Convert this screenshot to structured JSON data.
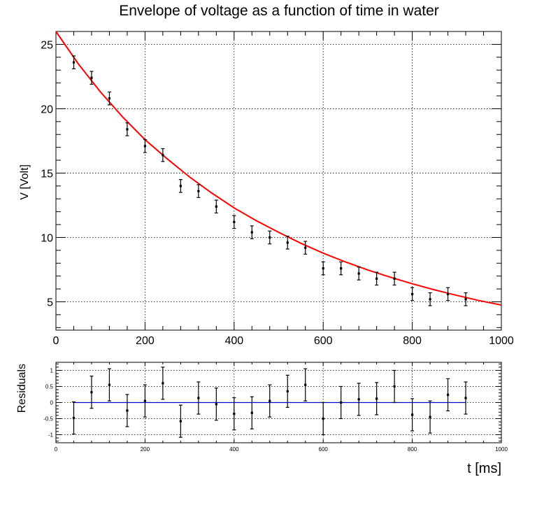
{
  "chart_data": [
    {
      "type": "scatter",
      "title": "Envelope of voltage as a function of time in water",
      "xlabel": "",
      "ylabel": "V [Volt]",
      "xlim": [
        0,
        1000
      ],
      "ylim": [
        2.8,
        26
      ],
      "x_ticks": [
        0,
        200,
        400,
        600,
        800,
        1000
      ],
      "y_ticks": [
        5,
        10,
        15,
        20,
        25
      ],
      "grid": true,
      "x": [
        40,
        80,
        120,
        160,
        200,
        240,
        280,
        320,
        360,
        400,
        440,
        480,
        520,
        560,
        600,
        640,
        680,
        720,
        760,
        800,
        840,
        880,
        920
      ],
      "y": [
        23.6,
        22.4,
        20.8,
        18.4,
        17.1,
        16.4,
        14.0,
        13.6,
        12.4,
        11.2,
        10.4,
        10.0,
        9.6,
        9.2,
        7.6,
        7.6,
        7.2,
        6.8,
        6.8,
        5.6,
        5.2,
        5.6,
        5.2
      ],
      "y_err": [
        0.5,
        0.5,
        0.5,
        0.5,
        0.5,
        0.5,
        0.5,
        0.5,
        0.5,
        0.5,
        0.5,
        0.5,
        0.5,
        0.5,
        0.5,
        0.5,
        0.5,
        0.5,
        0.5,
        0.5,
        0.5,
        0.5,
        0.5
      ],
      "fit_curve": {
        "color": "#ff0000",
        "x": [
          0,
          50,
          100,
          150,
          200,
          250,
          300,
          350,
          400,
          450,
          500,
          550,
          600,
          650,
          700,
          750,
          800,
          850,
          900,
          950,
          1000
        ],
        "y": [
          26.0,
          23.5,
          21.3,
          19.35,
          17.6,
          16.1,
          14.7,
          13.45,
          12.3,
          11.3,
          10.4,
          9.55,
          8.78,
          8.1,
          7.48,
          6.92,
          6.4,
          5.93,
          5.5,
          5.1,
          4.75
        ]
      },
      "point_color": "#000000"
    },
    {
      "type": "scatter",
      "title": "",
      "xlabel": "t [ms]",
      "ylabel": "Residuals",
      "xlim": [
        0,
        1000
      ],
      "ylim": [
        -1.25,
        1.25
      ],
      "x_ticks": [
        0,
        200,
        400,
        600,
        800,
        1000
      ],
      "y_ticks": [
        -1,
        -0.5,
        0,
        0.5,
        1
      ],
      "grid": true,
      "x": [
        40,
        80,
        120,
        160,
        200,
        240,
        280,
        320,
        360,
        400,
        440,
        480,
        520,
        560,
        600,
        640,
        680,
        720,
        760,
        800,
        840,
        880,
        920
      ],
      "y": [
        -0.48,
        0.32,
        0.55,
        -0.25,
        0.05,
        0.6,
        -0.58,
        0.14,
        -0.05,
        -0.35,
        -0.32,
        0.05,
        0.35,
        0.55,
        -0.5,
        0.0,
        0.1,
        0.12,
        0.5,
        -0.38,
        -0.45,
        0.24,
        0.14
      ],
      "y_err": [
        0.5,
        0.5,
        0.5,
        0.5,
        0.5,
        0.5,
        0.5,
        0.5,
        0.5,
        0.5,
        0.5,
        0.5,
        0.5,
        0.5,
        0.5,
        0.5,
        0.5,
        0.5,
        0.5,
        0.5,
        0.5,
        0.5,
        0.5
      ],
      "zero_line": {
        "color": "#0000cc",
        "x": [
          40,
          920
        ],
        "y": 0
      },
      "point_color": "#000000"
    }
  ]
}
